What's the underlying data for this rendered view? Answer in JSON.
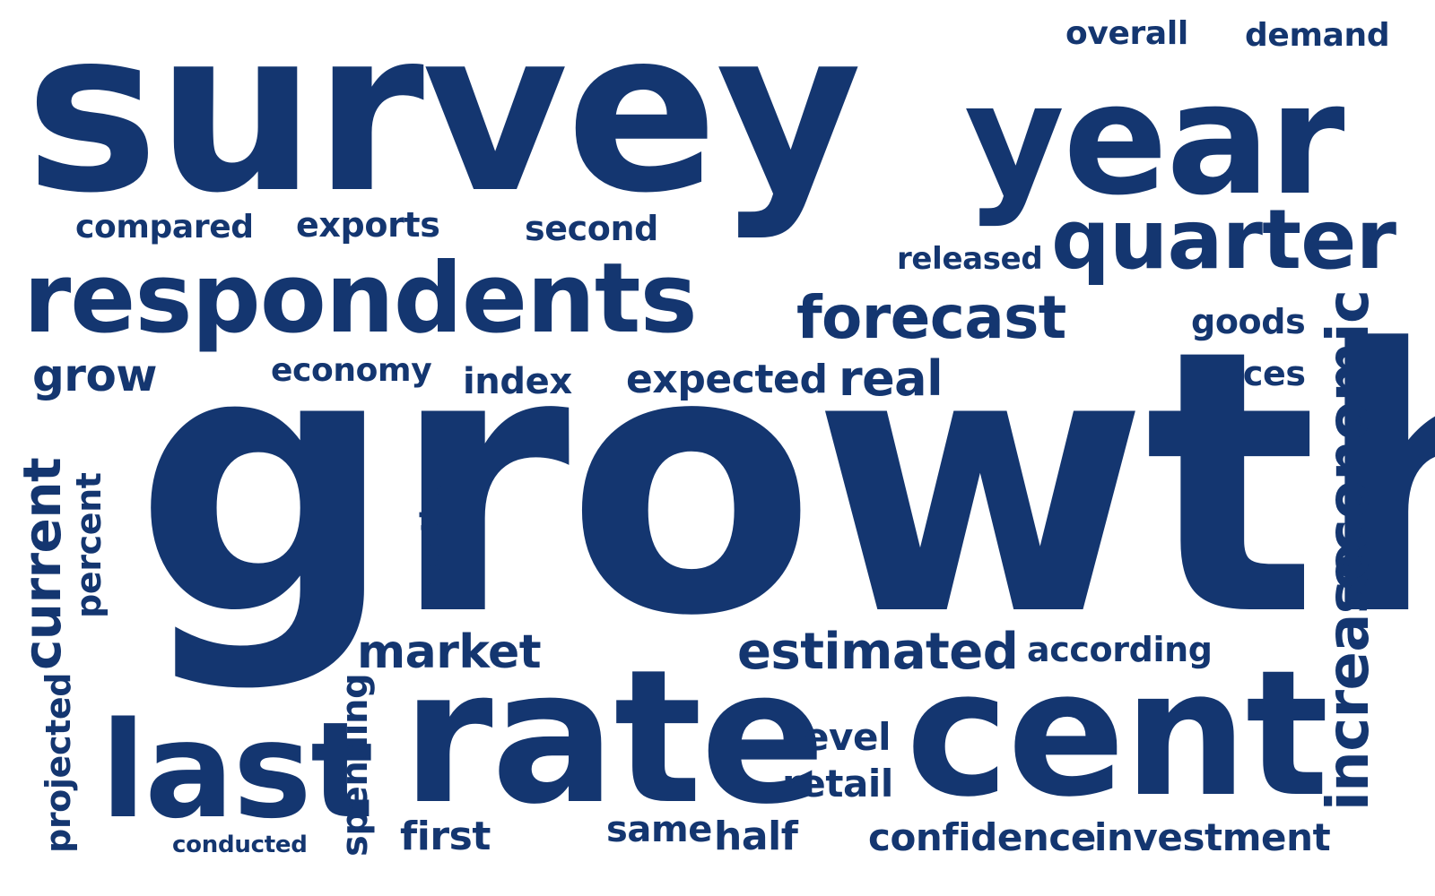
{
  "style": {
    "text_color": "#143670",
    "background": "#ffffff"
  },
  "words": {
    "survey": "survey",
    "year": "year",
    "overall": "overall",
    "demand": "demand",
    "compared": "compared",
    "exports": "exports",
    "second": "second",
    "released": "released",
    "quarter": "quarter",
    "respondents": "respondents",
    "forecast": "forecast",
    "goods": "goods",
    "grow": "grow",
    "economy": "economy",
    "index": "index",
    "expected": "expected",
    "real": "real",
    "prices": "prices",
    "growth": "growth",
    "economic": "economic",
    "increase": "increase",
    "current": "current",
    "percent": "percent",
    "months": "months",
    "market": "market",
    "estimated": "estimated",
    "according": "according",
    "rate": "rate",
    "cent": "cent",
    "level": "level",
    "retail": "retail",
    "last": "last",
    "projected": "projected",
    "spending": "spending",
    "conducted": "conducted",
    "first": "first",
    "same": "same",
    "half": "half",
    "confidence": "confidence",
    "investment": "investment"
  }
}
